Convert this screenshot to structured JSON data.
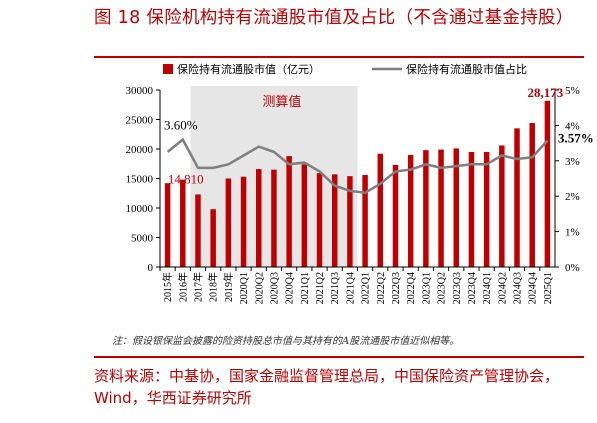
{
  "title": "图 18 保险机构持有流通股市值及占比（不含通过基金持股）",
  "note": "注：假设银保监会披露的险资持股总市值与其持有的A股流通股市值近似相等。",
  "source": "资料来源：中基协，国家金融监督管理总局，中国保险资产管理协会，Wind，华西证券研究所",
  "colors": {
    "bar": "#c00000",
    "line": "#7f7f7f",
    "shade": "#e6e6e6",
    "accent": "#c00000"
  },
  "chart_data": {
    "type": "bar",
    "categories": [
      "2015年",
      "2016年",
      "2017年",
      "2018年",
      "2019年",
      "2020Q1",
      "2020Q2",
      "2020Q3",
      "2020Q4",
      "2021Q1",
      "2021Q2",
      "2021Q3",
      "2021Q4",
      "2022Q1",
      "2022Q2",
      "2022Q3",
      "2022Q4",
      "2023Q1",
      "2023Q2",
      "2023Q3",
      "2023Q4",
      "2024Q1",
      "2024Q2",
      "2024Q3",
      "2024Q4",
      "2025Q1"
    ],
    "series": [
      {
        "name": "保险持有流通股市值（亿元）",
        "axis": "left",
        "type": "bar",
        "values": [
          14200,
          14810,
          12300,
          9800,
          15000,
          15300,
          16600,
          16500,
          18800,
          17400,
          15900,
          15700,
          15400,
          15600,
          19200,
          17300,
          19000,
          19800,
          19900,
          20100,
          19500,
          19500,
          20600,
          23500,
          24400,
          28173
        ]
      },
      {
        "name": "保险持有流通股市值占比",
        "axis": "right",
        "type": "line",
        "unit": "%",
        "values": [
          3.25,
          3.6,
          2.8,
          2.8,
          2.9,
          3.15,
          3.4,
          3.25,
          2.9,
          2.95,
          2.7,
          2.3,
          2.15,
          2.1,
          2.35,
          2.7,
          2.75,
          2.9,
          2.8,
          2.85,
          2.9,
          2.9,
          3.15,
          3.05,
          3.1,
          3.57
        ]
      }
    ],
    "ylim_left": [
      0,
      30000
    ],
    "yticks_left": [
      "0",
      "5000",
      "10000",
      "15000",
      "20000",
      "25000",
      "30000"
    ],
    "ylim_right": [
      0,
      5
    ],
    "yticks_right": [
      "0%",
      "1%",
      "2%",
      "3%",
      "4%",
      "5%"
    ],
    "shaded_region": {
      "from": "2017年",
      "to": "2021Q4",
      "label": "测算值"
    },
    "annotations": [
      {
        "label": "3.60%",
        "category": "2016年",
        "series": 1
      },
      {
        "label": "14,810",
        "category": "2016年",
        "series": 0
      },
      {
        "label": "28,173",
        "category": "2025Q1",
        "series": 0
      },
      {
        "label": "3.57%",
        "category": "2025Q1",
        "series": 1
      }
    ],
    "legend_position": "top",
    "grid": false
  }
}
